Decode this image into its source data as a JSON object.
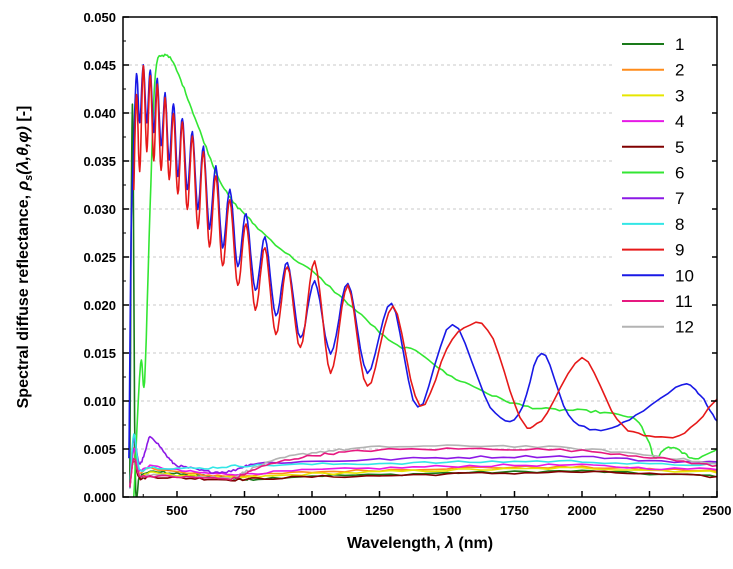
{
  "chart_data": {
    "type": "line",
    "xlabel": "Wavelength, λ (nm)",
    "ylabel": "Spectral diffuse reflectance, ρs(λ,θ,φ) [-]",
    "xlim": [
      300,
      2500
    ],
    "ylim": [
      0,
      0.05
    ],
    "x_ticks": [
      500,
      750,
      1000,
      1250,
      1500,
      1750,
      2000,
      2250,
      2500
    ],
    "x_tick_labels": [
      "500",
      "750",
      "1000",
      "1250",
      "1500",
      "1750",
      "2000",
      "2250",
      "2500"
    ],
    "y_ticks": [
      0,
      0.005,
      0.01,
      0.015,
      0.02,
      0.025,
      0.03,
      0.035,
      0.04,
      0.045,
      0.05
    ],
    "y_tick_labels": [
      "0.000",
      "0.005",
      "0.010",
      "0.015",
      "0.020",
      "0.025",
      "0.030",
      "0.035",
      "0.040",
      "0.045",
      "0.050"
    ],
    "grid": "horizontal dashed",
    "legend_position": "top-right",
    "series": [
      {
        "name": "1",
        "color": "#1a7a1a",
        "points": [
          [
            325,
            0.001
          ],
          [
            335,
            0.041
          ],
          [
            345,
            0.003
          ],
          [
            360,
            0.002
          ],
          [
            380,
            0.0025
          ],
          [
            450,
            0.0026
          ],
          [
            500,
            0.0024
          ],
          [
            600,
            0.0022
          ],
          [
            700,
            0.002
          ],
          [
            750,
            0.0018
          ],
          [
            800,
            0.0019
          ],
          [
            1000,
            0.0022
          ],
          [
            1250,
            0.0023
          ],
          [
            1500,
            0.0025
          ],
          [
            1750,
            0.0026
          ],
          [
            2000,
            0.0027
          ],
          [
            2250,
            0.0024
          ],
          [
            2500,
            0.0022
          ]
        ]
      },
      {
        "name": "2",
        "color": "#ff8c1a",
        "points": [
          [
            325,
            0.001
          ],
          [
            340,
            0.005
          ],
          [
            360,
            0.0025
          ],
          [
            400,
            0.003
          ],
          [
            500,
            0.0026
          ],
          [
            600,
            0.0023
          ],
          [
            700,
            0.0022
          ],
          [
            800,
            0.0023
          ],
          [
            1000,
            0.0026
          ],
          [
            1250,
            0.0028
          ],
          [
            1500,
            0.003
          ],
          [
            1750,
            0.0031
          ],
          [
            2000,
            0.0031
          ],
          [
            2250,
            0.0029
          ],
          [
            2500,
            0.0027
          ]
        ]
      },
      {
        "name": "3",
        "color": "#e6e600",
        "points": [
          [
            325,
            0.001
          ],
          [
            340,
            0.004
          ],
          [
            360,
            0.0022
          ],
          [
            400,
            0.0025
          ],
          [
            500,
            0.0023
          ],
          [
            600,
            0.0021
          ],
          [
            700,
            0.002
          ],
          [
            800,
            0.0021
          ],
          [
            1000,
            0.0024
          ],
          [
            1250,
            0.0026
          ],
          [
            1500,
            0.0028
          ],
          [
            1750,
            0.0029
          ],
          [
            2000,
            0.003
          ],
          [
            2250,
            0.0028
          ],
          [
            2500,
            0.0026
          ]
        ]
      },
      {
        "name": "4",
        "color": "#e619e6",
        "points": [
          [
            325,
            0.001
          ],
          [
            340,
            0.005
          ],
          [
            360,
            0.0028
          ],
          [
            400,
            0.0032
          ],
          [
            500,
            0.0028
          ],
          [
            600,
            0.0025
          ],
          [
            700,
            0.0024
          ],
          [
            800,
            0.0025
          ],
          [
            1000,
            0.0028
          ],
          [
            1250,
            0.003
          ],
          [
            1500,
            0.0032
          ],
          [
            1750,
            0.0033
          ],
          [
            2000,
            0.0033
          ],
          [
            2250,
            0.003
          ],
          [
            2500,
            0.0029
          ]
        ]
      },
      {
        "name": "5",
        "color": "#800000",
        "points": [
          [
            325,
            0.001
          ],
          [
            340,
            0.004
          ],
          [
            360,
            0.002
          ],
          [
            400,
            0.0021
          ],
          [
            500,
            0.002
          ],
          [
            600,
            0.0019
          ],
          [
            700,
            0.0018
          ],
          [
            800,
            0.0019
          ],
          [
            1000,
            0.0021
          ],
          [
            1250,
            0.0022
          ],
          [
            1500,
            0.0024
          ],
          [
            1750,
            0.0025
          ],
          [
            2000,
            0.0026
          ],
          [
            2250,
            0.0024
          ],
          [
            2500,
            0.0021
          ]
        ]
      },
      {
        "name": "6",
        "color": "#33e633",
        "points": [
          [
            340,
            0.0
          ],
          [
            365,
            0.014
          ],
          [
            380,
            0.012
          ],
          [
            400,
            0.03
          ],
          [
            420,
            0.044
          ],
          [
            450,
            0.046
          ],
          [
            480,
            0.0455
          ],
          [
            520,
            0.043
          ],
          [
            560,
            0.04
          ],
          [
            600,
            0.037
          ],
          [
            650,
            0.0335
          ],
          [
            700,
            0.031
          ],
          [
            750,
            0.0295
          ],
          [
            800,
            0.028
          ],
          [
            900,
            0.0255
          ],
          [
            1000,
            0.0235
          ],
          [
            1100,
            0.021
          ],
          [
            1200,
            0.0185
          ],
          [
            1300,
            0.016
          ],
          [
            1400,
            0.015
          ],
          [
            1500,
            0.0128
          ],
          [
            1600,
            0.0115
          ],
          [
            1700,
            0.0102
          ],
          [
            1800,
            0.0094
          ],
          [
            1900,
            0.0091
          ],
          [
            2000,
            0.009
          ],
          [
            2100,
            0.0087
          ],
          [
            2200,
            0.008
          ],
          [
            2250,
            0.0055
          ],
          [
            2270,
            0.004
          ],
          [
            2320,
            0.0052
          ],
          [
            2380,
            0.0045
          ],
          [
            2420,
            0.004
          ],
          [
            2500,
            0.005
          ]
        ]
      },
      {
        "name": "7",
        "color": "#8c19e6",
        "points": [
          [
            325,
            0.001
          ],
          [
            340,
            0.006
          ],
          [
            360,
            0.0035
          ],
          [
            380,
            0.0045
          ],
          [
            400,
            0.0062
          ],
          [
            430,
            0.0055
          ],
          [
            470,
            0.004
          ],
          [
            500,
            0.0033
          ],
          [
            550,
            0.003
          ],
          [
            600,
            0.0027
          ],
          [
            650,
            0.0026
          ],
          [
            700,
            0.0027
          ],
          [
            750,
            0.0032
          ],
          [
            800,
            0.0035
          ],
          [
            1000,
            0.0037
          ],
          [
            1250,
            0.0039
          ],
          [
            1500,
            0.0041
          ],
          [
            1750,
            0.0042
          ],
          [
            2000,
            0.0042
          ],
          [
            2250,
            0.0038
          ],
          [
            2500,
            0.0036
          ]
        ]
      },
      {
        "name": "8",
        "color": "#33e6e6",
        "points": [
          [
            325,
            0.001
          ],
          [
            340,
            0.0065
          ],
          [
            360,
            0.003
          ],
          [
            400,
            0.0031
          ],
          [
            500,
            0.003
          ],
          [
            600,
            0.003
          ],
          [
            700,
            0.0032
          ],
          [
            800,
            0.0033
          ],
          [
            1000,
            0.0034
          ],
          [
            1250,
            0.0035
          ],
          [
            1500,
            0.0036
          ],
          [
            1750,
            0.0037
          ],
          [
            2000,
            0.0037
          ],
          [
            2250,
            0.0034
          ],
          [
            2500,
            0.0034
          ]
        ]
      },
      {
        "name": "12",
        "color": "#b3b3b3",
        "points": [
          [
            325,
            0.001
          ],
          [
            340,
            0.004
          ],
          [
            360,
            0.0023
          ],
          [
            400,
            0.0023
          ],
          [
            500,
            0.0022
          ],
          [
            600,
            0.0021
          ],
          [
            700,
            0.002
          ],
          [
            750,
            0.0026
          ],
          [
            800,
            0.0032
          ],
          [
            900,
            0.0041
          ],
          [
            1000,
            0.0046
          ],
          [
            1100,
            0.0049
          ],
          [
            1250,
            0.0052
          ],
          [
            1500,
            0.0053
          ],
          [
            1750,
            0.0053
          ],
          [
            2000,
            0.005
          ],
          [
            2200,
            0.0045
          ],
          [
            2350,
            0.004
          ],
          [
            2500,
            0.0034
          ]
        ]
      },
      {
        "name": "11",
        "color": "#e61980",
        "points": [
          [
            325,
            0.001
          ],
          [
            340,
            0.004
          ],
          [
            360,
            0.0023
          ],
          [
            400,
            0.0022
          ],
          [
            500,
            0.0021
          ],
          [
            600,
            0.002
          ],
          [
            700,
            0.0019
          ],
          [
            750,
            0.0024
          ],
          [
            800,
            0.003
          ],
          [
            900,
            0.0038
          ],
          [
            1000,
            0.0043
          ],
          [
            1100,
            0.0046
          ],
          [
            1250,
            0.0049
          ],
          [
            1500,
            0.005
          ],
          [
            1750,
            0.005
          ],
          [
            2000,
            0.0048
          ],
          [
            2200,
            0.0043
          ],
          [
            2350,
            0.0038
          ],
          [
            2500,
            0.0032
          ]
        ]
      },
      {
        "name": "10",
        "color": "#1919e6",
        "points": [
          [
            322,
            0.004
          ],
          [
            330,
            0.027
          ],
          [
            338,
            0.035
          ],
          [
            350,
            0.044
          ],
          [
            362,
            0.039
          ],
          [
            375,
            0.045
          ],
          [
            388,
            0.039
          ],
          [
            401,
            0.0445
          ],
          [
            414,
            0.038
          ],
          [
            427,
            0.0435
          ],
          [
            441,
            0.0365
          ],
          [
            456,
            0.042
          ],
          [
            471,
            0.035
          ],
          [
            487,
            0.041
          ],
          [
            503,
            0.0335
          ],
          [
            520,
            0.0395
          ],
          [
            538,
            0.032
          ],
          [
            557,
            0.038
          ],
          [
            577,
            0.03
          ],
          [
            598,
            0.0365
          ],
          [
            620,
            0.028
          ],
          [
            644,
            0.0345
          ],
          [
            669,
            0.026
          ],
          [
            696,
            0.032
          ],
          [
            725,
            0.024
          ],
          [
            756,
            0.0295
          ],
          [
            790,
            0.0215
          ],
          [
            826,
            0.027
          ],
          [
            866,
            0.019
          ],
          [
            909,
            0.0245
          ],
          [
            957,
            0.0165
          ],
          [
            1010,
            0.0225
          ],
          [
            1069,
            0.015
          ],
          [
            1133,
            0.0222
          ],
          [
            1205,
            0.013
          ],
          [
            1295,
            0.0202
          ],
          [
            1392,
            0.0093
          ],
          [
            1520,
            0.018
          ],
          [
            1660,
            0.0093
          ],
          [
            1765,
            0.0085
          ],
          [
            1850,
            0.015
          ],
          [
            1950,
            0.0085
          ],
          [
            2070,
            0.007
          ],
          [
            2200,
            0.0085
          ],
          [
            2370,
            0.0117
          ],
          [
            2440,
            0.0105
          ],
          [
            2500,
            0.0078
          ]
        ]
      },
      {
        "name": "9",
        "color": "#e61919",
        "points": [
          [
            340,
            0.032
          ],
          [
            350,
            0.042
          ],
          [
            362,
            0.034
          ],
          [
            375,
            0.045
          ],
          [
            388,
            0.036
          ],
          [
            401,
            0.044
          ],
          [
            414,
            0.035
          ],
          [
            427,
            0.043
          ],
          [
            441,
            0.034
          ],
          [
            456,
            0.0415
          ],
          [
            471,
            0.033
          ],
          [
            487,
            0.04
          ],
          [
            503,
            0.0315
          ],
          [
            520,
            0.039
          ],
          [
            538,
            0.03
          ],
          [
            557,
            0.0375
          ],
          [
            577,
            0.028
          ],
          [
            598,
            0.036
          ],
          [
            620,
            0.026
          ],
          [
            644,
            0.0335
          ],
          [
            669,
            0.024
          ],
          [
            696,
            0.031
          ],
          [
            725,
            0.022
          ],
          [
            756,
            0.0285
          ],
          [
            790,
            0.0195
          ],
          [
            826,
            0.026
          ],
          [
            866,
            0.017
          ],
          [
            909,
            0.024
          ],
          [
            957,
            0.0155
          ],
          [
            1010,
            0.0245
          ],
          [
            1069,
            0.013
          ],
          [
            1133,
            0.022
          ],
          [
            1205,
            0.0115
          ],
          [
            1300,
            0.0198
          ],
          [
            1400,
            0.0095
          ],
          [
            1520,
            0.0165
          ],
          [
            1650,
            0.0175
          ],
          [
            1770,
            0.0083
          ],
          [
            1850,
            0.008
          ],
          [
            2000,
            0.0144
          ],
          [
            2130,
            0.008
          ],
          [
            2250,
            0.0063
          ],
          [
            2380,
            0.0067
          ],
          [
            2500,
            0.0102
          ]
        ]
      }
    ]
  },
  "legend": {
    "items": [
      {
        "label": "1",
        "color": "#1a7a1a"
      },
      {
        "label": "2",
        "color": "#ff8c1a"
      },
      {
        "label": "3",
        "color": "#e6e600"
      },
      {
        "label": "4",
        "color": "#e619e6"
      },
      {
        "label": "5",
        "color": "#800000"
      },
      {
        "label": "6",
        "color": "#33e633"
      },
      {
        "label": "7",
        "color": "#8c19e6"
      },
      {
        "label": "8",
        "color": "#33e6e6"
      },
      {
        "label": "9",
        "color": "#e61919"
      },
      {
        "label": "10",
        "color": "#1919e6"
      },
      {
        "label": "11",
        "color": "#e61980"
      },
      {
        "label": "12",
        "color": "#b3b3b3"
      }
    ]
  }
}
